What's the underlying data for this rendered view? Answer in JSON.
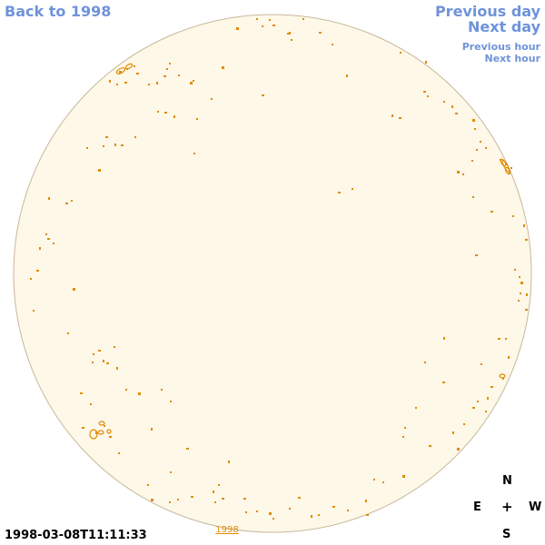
{
  "nav": {
    "back": "Back to 1998",
    "previous_day": "Previous day",
    "next_day": "Next day",
    "previous_hour": "Previous hour",
    "next_hour": "Next hour"
  },
  "timestamp": "1998-03-08T11:11:33",
  "year_label": "1998",
  "compass": {
    "north": "N",
    "east": "E",
    "west": "W",
    "south": "S",
    "center": "+"
  },
  "colors": {
    "disk_fill": "#fdf8e8",
    "disk_border": "#c8b89a",
    "contour": "#e28a00",
    "link": "#6f93d9"
  }
}
